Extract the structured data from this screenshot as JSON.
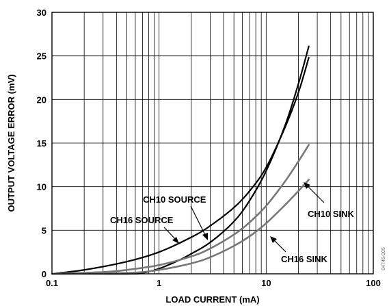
{
  "figure_id": "04745-005",
  "chart_data": {
    "type": "line",
    "title": "",
    "xlabel": "LOAD CURRENT (mA)",
    "ylabel": "OUTPUT VOLTAGE ERROR (mV)",
    "x_scale": "log",
    "xlim": [
      0.1,
      100
    ],
    "ylim": [
      0,
      30
    ],
    "x_ticks": [
      0.1,
      1,
      10,
      100
    ],
    "x_tick_labels": [
      "0.1",
      "1",
      "10",
      "100"
    ],
    "y_ticks": [
      0,
      5,
      10,
      15,
      20,
      25,
      30
    ],
    "y_tick_labels": [
      "0",
      "5",
      "10",
      "15",
      "20",
      "25",
      "30"
    ],
    "grid": true,
    "series": [
      {
        "name": "CH10 SOURCE",
        "color": "#000000",
        "x": [
          0.1,
          0.2,
          0.5,
          1,
          2,
          3,
          5,
          7,
          10,
          15,
          20,
          25
        ],
        "y": [
          0.0,
          0.45,
          1.4,
          2.5,
          4.2,
          5.5,
          7.6,
          9.5,
          12.2,
          16.8,
          20.8,
          24.8
        ]
      },
      {
        "name": "CH16 SOURCE",
        "color": "#000000",
        "x": [
          0.1,
          0.5,
          0.7,
          1,
          1.5,
          2,
          3,
          5,
          7,
          10,
          15,
          20,
          25
        ],
        "y": [
          0.0,
          0.0,
          0.1,
          0.6,
          1.5,
          2.3,
          3.6,
          6.0,
          8.4,
          11.8,
          17.0,
          21.8,
          26.1
        ]
      },
      {
        "name": "CH10 SINK",
        "color": "#777777",
        "x": [
          0.1,
          0.3,
          0.5,
          1,
          2,
          3,
          5,
          7,
          10,
          15,
          20,
          25
        ],
        "y": [
          0.0,
          0.2,
          0.45,
          1.0,
          2.0,
          2.9,
          4.5,
          5.9,
          7.8,
          10.6,
          12.9,
          14.8
        ]
      },
      {
        "name": "CH16 SINK",
        "color": "#777777",
        "x": [
          0.1,
          0.5,
          1,
          2,
          3,
          5,
          7,
          10,
          15,
          20,
          25
        ],
        "y": [
          0.0,
          0.1,
          0.45,
          1.2,
          1.9,
          3.2,
          4.3,
          5.8,
          7.9,
          9.5,
          10.8
        ]
      }
    ],
    "annotations": [
      {
        "text": "CH10 SOURCE"
      },
      {
        "text": "CH16 SOURCE"
      },
      {
        "text": "CH10 SINK"
      },
      {
        "text": "CH16 SINK"
      }
    ]
  }
}
